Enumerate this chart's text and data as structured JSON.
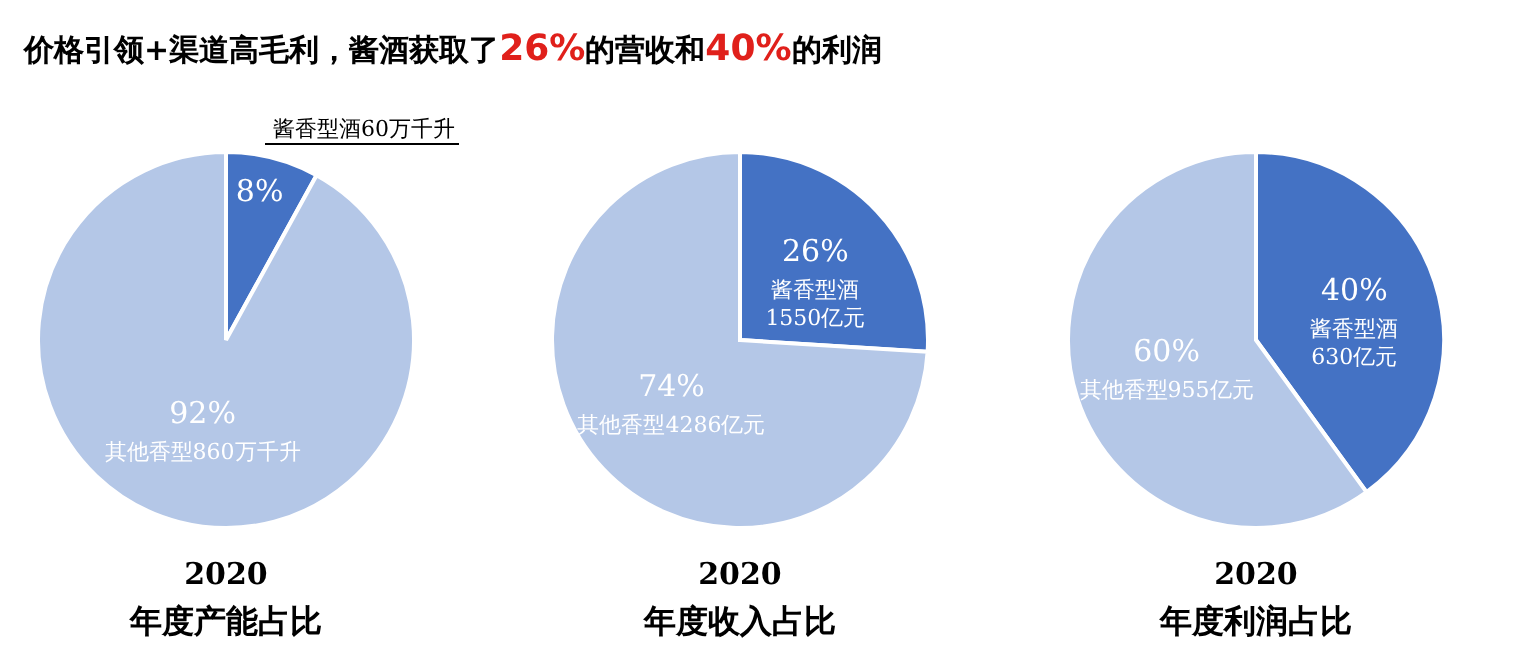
{
  "chart_data": [
    {
      "type": "pie",
      "title": "2020",
      "subtitle": "年度产能占比",
      "annotations": [
        "价格引领+渠道高毛利，酱酒获取了**26%**的营收和**40%**的利润"
      ],
      "categories": [
        "酱香型酒60万千升",
        "其他香型860万千升"
      ],
      "values": [
        8,
        92
      ],
      "value_labels": [
        "8%",
        "92%"
      ],
      "colors": [
        "#4472c4",
        "#b4c7e7"
      ]
    },
    {
      "type": "pie",
      "title": "2020",
      "subtitle": "年度收入占比",
      "categories": [
        "酱香型酒1550亿元",
        "其他香型4286亿元"
      ],
      "values": [
        26,
        74
      ],
      "value_labels": [
        "26%",
        "74%"
      ],
      "colors": [
        "#4472c4",
        "#b4c7e7"
      ]
    },
    {
      "type": "pie",
      "title": "2020",
      "subtitle": "年度利润占比",
      "categories": [
        "酱香型酒630亿元",
        "其他香型955亿元"
      ],
      "values": [
        40,
        60
      ],
      "value_labels": [
        "40%",
        "60%"
      ],
      "colors": [
        "#4472c4",
        "#b4c7e7"
      ]
    }
  ]
}
